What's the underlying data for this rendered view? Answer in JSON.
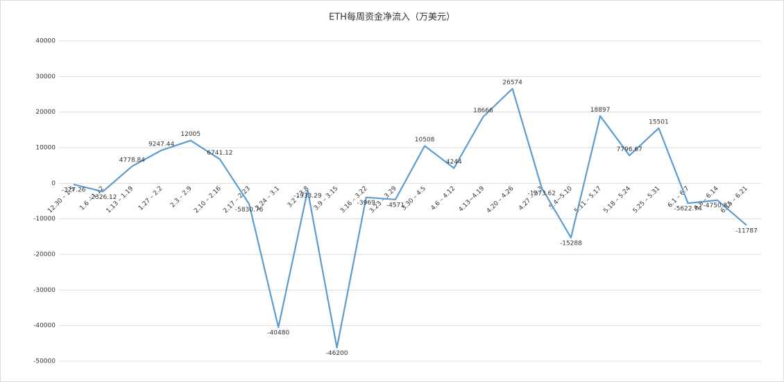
{
  "chart_data": {
    "type": "line",
    "title": "ETH每周资金净流入（万美元）",
    "categories": [
      "12.30 – 1.5",
      "1.6 – 1.12",
      "1.13 – 1.19",
      "1.27 – 2.2",
      "2.3 – 2.9",
      "2.10 – 2.16",
      "2.17 – 2.23",
      "2.24 – 3.1",
      "3.2 – 3.8",
      "3.9 – 3.15",
      "3.16 – 3.22",
      "3.23 – 3.29",
      "3.30 – 4.5",
      "4.6 – 4.12",
      "4.13~4.19",
      "4.20 – 4.26",
      "4.27 – 5.3",
      "5.4~5.10",
      "5.11 – 5.17",
      "5.18 – 5.24",
      "5.25 – 5.31",
      "6.1 – 6.7",
      "6.8 – 6.14",
      "6.15 – 6.21"
    ],
    "values": [
      -327.26,
      -2326.12,
      4778.84,
      9247.44,
      12005,
      6741.12,
      -5830.76,
      -40480,
      -1933.29,
      -46200,
      -3969,
      -4571,
      10508,
      4244,
      18666,
      26574,
      -1273.62,
      -15288,
      18897,
      7796.67,
      15501,
      -5622.74,
      -4750.87,
      -11787
    ],
    "color": "#5b9bd0",
    "ylim": [
      -50000,
      40000
    ],
    "yticks": [
      -50000,
      -40000,
      -30000,
      -20000,
      -10000,
      0,
      10000,
      20000,
      30000,
      40000
    ],
    "grid": true
  }
}
